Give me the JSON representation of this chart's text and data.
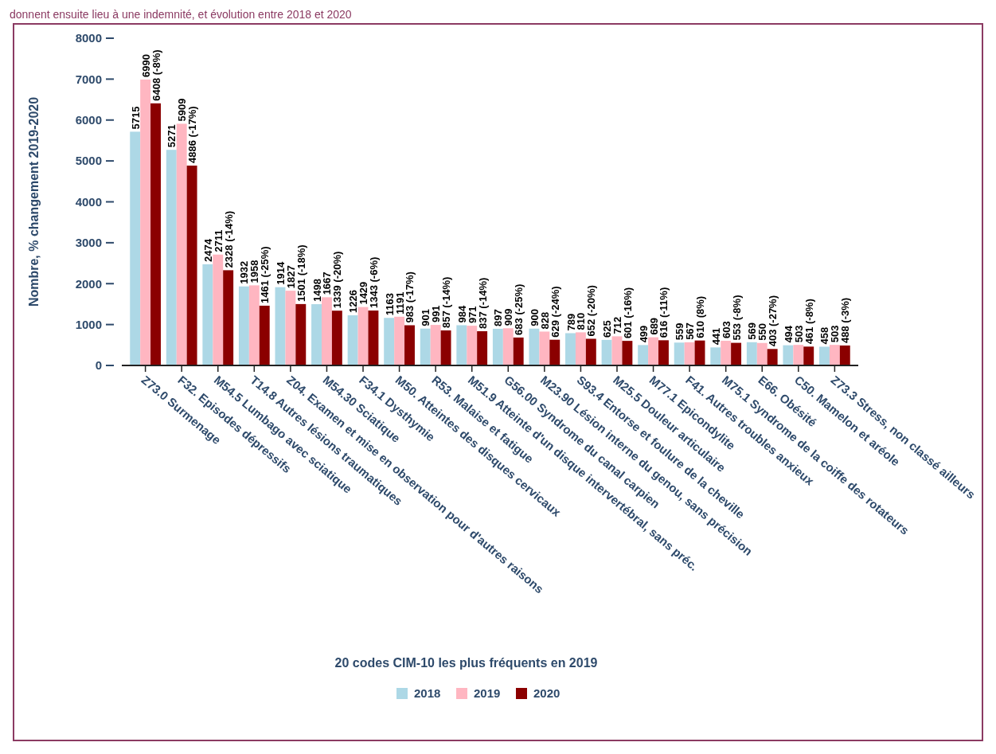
{
  "chart_data": {
    "type": "bar",
    "title": "donnent ensuite lieu à une indemnité, et évolution entre 2018 et 2020",
    "xlabel": "20 codes CIM-10 les plus fréquents en 2019",
    "ylabel": "Nombre, % changement 2019-2020",
    "categories": [
      "Z73.0 Surmenage",
      "F32. Episodes dépressifs",
      "M54.5 Lumbago avec sciatique",
      "T14.8 Autres lésions traumatiques",
      "Z04. Examen et mise en observation pour d'autres raisons",
      "M54.30 Sciatique",
      "F34.1 Dysthymie",
      "M50. Atteintes des disques cervicaux",
      "R53. Malaise et fatigue",
      "M51.9 Atteinte d'un disque intervertébral, sans préc.",
      "G56.00 Syndrome du canal carpien",
      "M23.90 Lésion interne du genou, sans précision",
      "S93.4 Entorse et foulure de la cheville",
      "M25.5 Douleur articulaire",
      "M77.1 Epicondylite",
      "F41. Autres troubles anxieux",
      "M75.1 Syndrome de la coiffe des rotateurs",
      "E66. Obésité",
      "C50. Mamelon et aréole",
      "Z73.3 Stress, non classé ailleurs"
    ],
    "series": [
      {
        "name": "2018",
        "color": "#add8e6",
        "values": [
          5715,
          5271,
          2474,
          1932,
          1914,
          1498,
          1226,
          1163,
          901,
          984,
          897,
          900,
          789,
          625,
          499,
          559,
          441,
          569,
          494,
          458
        ]
      },
      {
        "name": "2019",
        "color": "#ffb6c1",
        "values": [
          6990,
          5909,
          2711,
          1958,
          1827,
          1667,
          1429,
          1191,
          991,
          971,
          909,
          828,
          810,
          712,
          689,
          567,
          603,
          550,
          503,
          503
        ]
      },
      {
        "name": "2020",
        "color": "#8b0000",
        "values": [
          6408,
          4886,
          2328,
          1461,
          1501,
          1339,
          1343,
          983,
          857,
          837,
          683,
          629,
          652,
          601,
          616,
          610,
          553,
          403,
          461,
          488
        ],
        "value_labels": [
          "6408 (-8%)",
          "4886 (-17%)",
          "2328 (-14%)",
          "1461 (-25%)",
          "1501 (-18%)",
          "1339 (-20%)",
          "1343 (-6%)",
          "983 (-17%)",
          "857 (-14%)",
          "837 (-14%)",
          "683 (-25%)",
          "629 (-24%)",
          "652 (-20%)",
          "601 (-16%)",
          "616 (-11%)",
          "610 (8%)",
          "553 (-8%)",
          "403 (-27%)",
          "461 (-8%)",
          "488 (-3%)"
        ]
      }
    ],
    "data_labels": true,
    "ylim": [
      0,
      8000
    ],
    "yticks": [
      0,
      1000,
      2000,
      3000,
      4000,
      5000,
      6000,
      7000,
      8000
    ],
    "grid": false,
    "legend": "bottom"
  }
}
